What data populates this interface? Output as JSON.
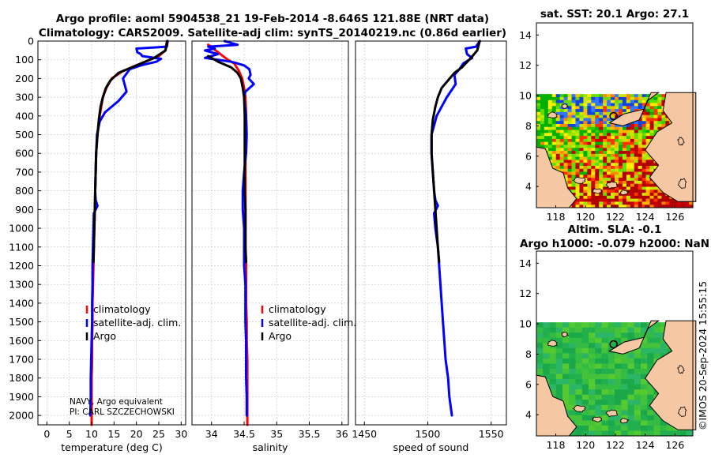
{
  "chart_data": {
    "type": "line",
    "title_line1": "Argo profile: aoml 5904538_21 19-Feb-2014 -8.646S 121.88E (NRT data)",
    "title_line2": "Climatology: CARS2009. Satellite-adj clim: synTS_20140219.nc (0.86d earlier)",
    "depth_axis": {
      "ylim": [
        0,
        2050
      ],
      "ticks": [
        0,
        100,
        200,
        300,
        400,
        500,
        600,
        700,
        800,
        900,
        1000,
        1100,
        1200,
        1300,
        1400,
        1500,
        1600,
        1700,
        1800,
        1900,
        2000
      ],
      "inverted": true
    },
    "legend_labels": [
      "climatology",
      "satellite-adj. clim.",
      "Argo"
    ],
    "series_colors": {
      "climatology": "#ff0000",
      "satellite": "#0000ff",
      "argo": "#000000"
    },
    "note_lines": [
      "NAVY, Argo equivalent",
      "PI: CARL SZCZECHOWSKI"
    ],
    "panels": [
      {
        "id": "temperature",
        "xlabel": "temperature (deg C)",
        "xlim": [
          -2,
          31
        ],
        "xticks": [
          0,
          5,
          10,
          15,
          20,
          25,
          30
        ],
        "series": [
          {
            "name": "climatology",
            "color": "#ff0000",
            "points": [
              [
                26.8,
                0
              ],
              [
                26.5,
                50
              ],
              [
                25,
                80
              ],
              [
                20,
                130
              ],
              [
                17,
                160
              ],
              [
                14.5,
                200
              ],
              [
                13.3,
                250
              ],
              [
                12.5,
                300
              ],
              [
                11.8,
                400
              ],
              [
                11.3,
                500
              ],
              [
                11,
                600
              ],
              [
                10.9,
                700
              ],
              [
                10.8,
                800
              ],
              [
                10.7,
                900
              ],
              [
                10.6,
                1000
              ],
              [
                10.5,
                1100
              ],
              [
                10.4,
                1200
              ],
              [
                10.3,
                1300
              ],
              [
                10.2,
                1400
              ],
              [
                10.2,
                1500
              ],
              [
                10.1,
                1600
              ],
              [
                10.1,
                1700
              ],
              [
                10,
                1800
              ],
              [
                10,
                1900
              ],
              [
                10,
                2000
              ],
              [
                10,
                2050
              ]
            ]
          },
          {
            "name": "satellite",
            "color": "#0000ff",
            "points": [
              [
                27,
                0
              ],
              [
                26.8,
                30
              ],
              [
                20,
                40
              ],
              [
                20.2,
                60
              ],
              [
                21,
                70
              ],
              [
                21.3,
                80
              ],
              [
                25.5,
                95
              ],
              [
                24.5,
                110
              ],
              [
                21,
                130
              ],
              [
                18.5,
                150
              ],
              [
                17,
                200
              ],
              [
                17.8,
                270
              ],
              [
                16,
                320
              ],
              [
                13,
                380
              ],
              [
                11.8,
                430
              ],
              [
                11.2,
                500
              ],
              [
                11,
                600
              ],
              [
                10.9,
                700
              ],
              [
                10.8,
                800
              ],
              [
                10.9,
                850
              ],
              [
                11.3,
                880
              ],
              [
                10.5,
                920
              ],
              [
                10.4,
                1000
              ],
              [
                10.3,
                1100
              ],
              [
                10.2,
                1200
              ],
              [
                10.2,
                1300
              ],
              [
                10.1,
                1400
              ],
              [
                10.1,
                1500
              ],
              [
                10,
                1600
              ],
              [
                9.9,
                1700
              ],
              [
                9.8,
                1800
              ],
              [
                9.8,
                1900
              ],
              [
                9.7,
                2000
              ]
            ]
          },
          {
            "name": "argo",
            "color": "#000000",
            "points": [
              [
                26.9,
                0
              ],
              [
                26.5,
                50
              ],
              [
                24,
                90
              ],
              [
                19,
                140
              ],
              [
                16,
                170
              ],
              [
                14.2,
                210
              ],
              [
                13.2,
                250
              ],
              [
                12.5,
                300
              ],
              [
                12,
                350
              ],
              [
                11.6,
                420
              ],
              [
                11.3,
                500
              ],
              [
                11,
                600
              ],
              [
                10.9,
                700
              ],
              [
                10.8,
                800
              ],
              [
                10.7,
                900
              ],
              [
                10.6,
                1000
              ],
              [
                10.5,
                1100
              ],
              [
                10.4,
                1180
              ]
            ]
          }
        ]
      },
      {
        "id": "salinity",
        "xlabel": "salinity",
        "xlim": [
          33.7,
          36.1
        ],
        "xticks": [
          34,
          34.5,
          35,
          35.5,
          36
        ],
        "tick_labels": [
          "34",
          "34.5",
          "35",
          "35.5",
          "36"
        ],
        "series": [
          {
            "name": "climatology",
            "color": "#ff0000",
            "points": [
              [
                33.95,
                20
              ],
              [
                34.1,
                60
              ],
              [
                34.25,
                100
              ],
              [
                34.35,
                120
              ],
              [
                34.42,
                160
              ],
              [
                34.47,
                200
              ],
              [
                34.5,
                250
              ],
              [
                34.52,
                300
              ],
              [
                34.53,
                400
              ],
              [
                34.53,
                500
              ],
              [
                34.52,
                600
              ],
              [
                34.52,
                700
              ],
              [
                34.52,
                800
              ],
              [
                34.52,
                900
              ],
              [
                34.52,
                1000
              ],
              [
                34.52,
                1100
              ],
              [
                34.53,
                1200
              ],
              [
                34.53,
                1300
              ],
              [
                34.53,
                1400
              ],
              [
                34.54,
                1500
              ],
              [
                34.54,
                1600
              ],
              [
                34.55,
                1700
              ],
              [
                34.55,
                1800
              ],
              [
                34.55,
                1900
              ],
              [
                34.55,
                2000
              ],
              [
                34.55,
                2050
              ]
            ]
          },
          {
            "name": "satellite",
            "color": "#0000ff",
            "points": [
              [
                34.2,
                0
              ],
              [
                34.3,
                10
              ],
              [
                34.4,
                20
              ],
              [
                33.95,
                30
              ],
              [
                34.05,
                40
              ],
              [
                33.9,
                50
              ],
              [
                34.1,
                70
              ],
              [
                33.9,
                90
              ],
              [
                34.3,
                110
              ],
              [
                34.5,
                130
              ],
              [
                34.58,
                150
              ],
              [
                34.6,
                180
              ],
              [
                34.57,
                200
              ],
              [
                34.65,
                230
              ],
              [
                34.52,
                270
              ],
              [
                34.5,
                300
              ],
              [
                34.53,
                400
              ],
              [
                34.54,
                500
              ],
              [
                34.53,
                600
              ],
              [
                34.5,
                700
              ],
              [
                34.48,
                800
              ],
              [
                34.48,
                900
              ],
              [
                34.5,
                1000
              ],
              [
                34.5,
                1100
              ],
              [
                34.5,
                1200
              ],
              [
                34.52,
                1300
              ],
              [
                34.52,
                1400
              ],
              [
                34.52,
                1500
              ],
              [
                34.53,
                1600
              ],
              [
                34.53,
                1700
              ],
              [
                34.53,
                1800
              ],
              [
                34.54,
                1900
              ],
              [
                34.54,
                2000
              ]
            ]
          },
          {
            "name": "argo",
            "color": "#000000",
            "points": [
              [
                33.95,
                80
              ],
              [
                34.1,
                110
              ],
              [
                34.3,
                140
              ],
              [
                34.4,
                170
              ],
              [
                34.45,
                200
              ],
              [
                34.48,
                250
              ],
              [
                34.5,
                300
              ],
              [
                34.51,
                400
              ],
              [
                34.51,
                500
              ],
              [
                34.51,
                600
              ],
              [
                34.51,
                700
              ],
              [
                34.51,
                800
              ],
              [
                34.52,
                900
              ],
              [
                34.52,
                1000
              ],
              [
                34.52,
                1100
              ],
              [
                34.53,
                1180
              ]
            ]
          }
        ]
      },
      {
        "id": "sound",
        "xlabel": "speed of sound",
        "xlim": [
          1443,
          1562
        ],
        "xticks": [
          1450,
          1500,
          1550
        ],
        "series": [
          {
            "name": "satellite",
            "color": "#0000ff",
            "points": [
              [
                1541,
                0
              ],
              [
                1538,
                30
              ],
              [
                1530,
                40
              ],
              [
                1531,
                70
              ],
              [
                1535,
                90
              ],
              [
                1528,
                120
              ],
              [
                1525,
                150
              ],
              [
                1521,
                180
              ],
              [
                1522,
                230
              ],
              [
                1515,
                300
              ],
              [
                1507,
                400
              ],
              [
                1503,
                500
              ],
              [
                1503,
                600
              ],
              [
                1504,
                700
              ],
              [
                1505,
                800
              ],
              [
                1506,
                850
              ],
              [
                1508,
                880
              ],
              [
                1505,
                920
              ],
              [
                1506,
                1000
              ],
              [
                1508,
                1100
              ],
              [
                1509,
                1200
              ],
              [
                1510,
                1300
              ],
              [
                1511,
                1400
              ],
              [
                1512,
                1500
              ],
              [
                1513,
                1600
              ],
              [
                1514,
                1700
              ],
              [
                1516,
                1800
              ],
              [
                1517,
                1900
              ],
              [
                1519,
                2000
              ]
            ]
          },
          {
            "name": "argo",
            "color": "#000000",
            "points": [
              [
                1541,
                0
              ],
              [
                1539,
                50
              ],
              [
                1534,
                90
              ],
              [
                1527,
                140
              ],
              [
                1521,
                170
              ],
              [
                1516,
                210
              ],
              [
                1511,
                250
              ],
              [
                1508,
                300
              ],
              [
                1506,
                350
              ],
              [
                1504,
                420
              ],
              [
                1503,
                500
              ],
              [
                1503,
                600
              ],
              [
                1504,
                700
              ],
              [
                1505,
                800
              ],
              [
                1506,
                900
              ],
              [
                1507,
                1000
              ],
              [
                1508,
                1100
              ],
              [
                1509,
                1180
              ]
            ]
          }
        ]
      }
    ],
    "maps": [
      {
        "id": "sst-map",
        "title_lines": [
          "sat. SST: 20.1 Argo: 27.1"
        ],
        "xticks": [
          118,
          120,
          122,
          124,
          126
        ],
        "yticks": [
          4,
          6,
          8,
          10,
          12,
          14
        ],
        "xlim": [
          116.7,
          127.2
        ],
        "ylim": [
          2.6,
          14.8
        ],
        "data_top_lat": 10.1
      },
      {
        "id": "sla-map",
        "title_lines": [
          "Altim. SLA: -0.1",
          "Argo h1000: -0.079 h2000: NaN"
        ],
        "xticks": [
          118,
          120,
          122,
          124,
          126
        ],
        "yticks": [
          4,
          6,
          8,
          10,
          12,
          14
        ],
        "xlim": [
          116.7,
          127.2
        ],
        "ylim": [
          2.6,
          14.8
        ],
        "data_top_lat": 10.1
      }
    ],
    "marker": {
      "lon": 121.88,
      "lat": 8.646
    },
    "footer": "©IMOS 20-Sep-2024 15:55:15"
  }
}
